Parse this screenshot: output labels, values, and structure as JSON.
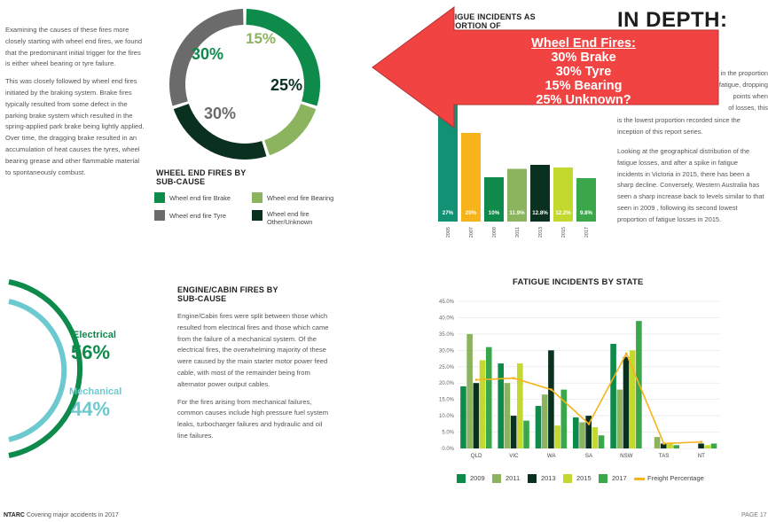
{
  "top_left": {
    "paragraphs": [
      "Examining the causes of these fires more closely starting with wheel end fires, we found that the predominant initial trigger for the fires is either wheel bearing or tyre failure.",
      "This was closely followed by wheel end fires initiated by the braking system. Brake fires typically resulted from some defect in the parking brake system which resulted in the spring-applied park brake being lightly applied. Over time, the dragging brake resulted in an accumulation of heat causes the tyres, wheel bearing grease and other flammable material to spontaneously combust."
    ]
  },
  "wheel_end": {
    "title": "WHEEL END FIRES BY SUB-CAUSE",
    "legend": [
      {
        "label": "Wheel end fire Brake",
        "color": "#0e8a4b"
      },
      {
        "label": "Wheel end fire Bearing",
        "color": "#8cb35e"
      },
      {
        "label": "Wheel end fire Tyre",
        "color": "#6b6b6b"
      },
      {
        "label": "Wheel end fire Other/Unknown",
        "color": "#0a3020"
      }
    ],
    "labels": {
      "brake": "30%",
      "bearing": "15%",
      "unknown": "25%",
      "tyre": "30%"
    }
  },
  "fatigue_top": {
    "title_fragment": "TIGUE INCIDENTS AS PORTION OF",
    "heading_fragment": "IN DEPTH:",
    "text_frag1": "ne in the proportion\ny fatigue, dropping\npoints when\nof losses, this",
    "text_frag2": "is the lowest proportion recorded since the inception of this report series.",
    "text_body": "Looking at the geographical distribution of the fatigue losses, and after a spike in fatigue incidents in Victoria in 2015, there has been a sharp decline. Conversely, Western Australia has seen a sharp increase back to levels similar to that seen in 2009 , following its second lowest proportion of fatigue losses in 2015."
  },
  "callout": {
    "lines": [
      "Wheel End Fires:",
      "30% Brake",
      "30% Tyre",
      "15% Bearing",
      "25% Unknown?"
    ],
    "color": "#f24343"
  },
  "engine": {
    "title": "ENGINE/CABIN FIRES BY SUB-CAUSE",
    "electrical_label": "Electrical",
    "electrical_value": "56%",
    "mechanical_label": "Mechanical",
    "mechanical_value": "44%",
    "paragraphs": [
      "Engine/Cabin fires were split between those which resulted from electrical fires and those which came from the failure of a mechanical system. Of the electrical fires, the overwhelming majority of these were caused by the main starter motor power feed cable, with most of the remainder being from alternator power output cables.",
      "For the fires arising from mechanical failures, common causes include high pressure fuel system leaks, turbocharger failures and hydraulic and oil line failures."
    ]
  },
  "footer": {
    "brand": "NTARC",
    "text": "Covering major accidents in 2017",
    "page": "PAGE 17"
  },
  "chart_data": [
    {
      "type": "pie",
      "title": "WHEEL END FIRES BY SUB-CAUSE",
      "categories": [
        "Wheel end fire Brake",
        "Wheel end fire Bearing",
        "Wheel end fire Other/Unknown",
        "Wheel end fire Tyre"
      ],
      "values": [
        30,
        15,
        25,
        30
      ],
      "colors": [
        "#0e8a4b",
        "#8cb35e",
        "#0a3020",
        "#6b6b6b"
      ]
    },
    {
      "type": "pie",
      "title": "ENGINE/CABIN FIRES BY SUB-CAUSE",
      "categories": [
        "Electrical",
        "Mechanical"
      ],
      "values": [
        56,
        44
      ],
      "colors": [
        "#0e8a4b",
        "#6cc9cf"
      ]
    },
    {
      "type": "bar",
      "title": "",
      "categories": [
        "2005",
        "2007",
        "2009",
        "2011",
        "2013",
        "2015",
        "2017"
      ],
      "values": [
        27,
        20,
        10,
        11.9,
        12.8,
        12.2,
        9.8
      ],
      "value_labels": [
        "27%",
        "20%",
        "10%",
        "11.9%",
        "12.8%",
        "12.2%",
        "9.8%"
      ],
      "colors": [
        "#129175",
        "#f6b31a",
        "#0e8a4b",
        "#8cb35e",
        "#0a3020",
        "#c4d92e",
        "#3aa84a"
      ],
      "ylim": [
        0,
        30
      ]
    },
    {
      "type": "bar",
      "title": "FATIGUE INCIDENTS BY STATE",
      "categories": [
        "QLD",
        "VIC",
        "WA",
        "SA",
        "NSW",
        "TAS",
        "NT"
      ],
      "yticks": [
        "0.0%",
        "5.0%",
        "10.0%",
        "15.0%",
        "20.0%",
        "25.0%",
        "30.0%",
        "35.0%",
        "40.0%",
        "45.0%"
      ],
      "ylim": [
        0,
        45
      ],
      "series": [
        {
          "name": "2009",
          "color": "#0e8a4b",
          "values": [
            19,
            26,
            13,
            9.5,
            32,
            0,
            0
          ]
        },
        {
          "name": "2011",
          "color": "#8cb35e",
          "values": [
            35,
            20,
            16.5,
            8,
            18,
            3.5,
            0
          ]
        },
        {
          "name": "2013",
          "color": "#0a3020",
          "values": [
            20,
            10,
            30,
            10,
            28,
            1.5,
            1.5
          ]
        },
        {
          "name": "2015",
          "color": "#c4d92e",
          "values": [
            27,
            26,
            7,
            6.5,
            30,
            1.5,
            1
          ]
        },
        {
          "name": "2017",
          "color": "#3aa84a",
          "values": [
            31,
            8.5,
            18,
            4,
            39,
            1,
            1.5
          ]
        },
        {
          "name": "Freight Percentage",
          "type": "line",
          "color": "#f6b31a",
          "values": [
            21,
            21.5,
            18,
            7.5,
            29,
            1.5,
            2
          ]
        }
      ]
    }
  ]
}
